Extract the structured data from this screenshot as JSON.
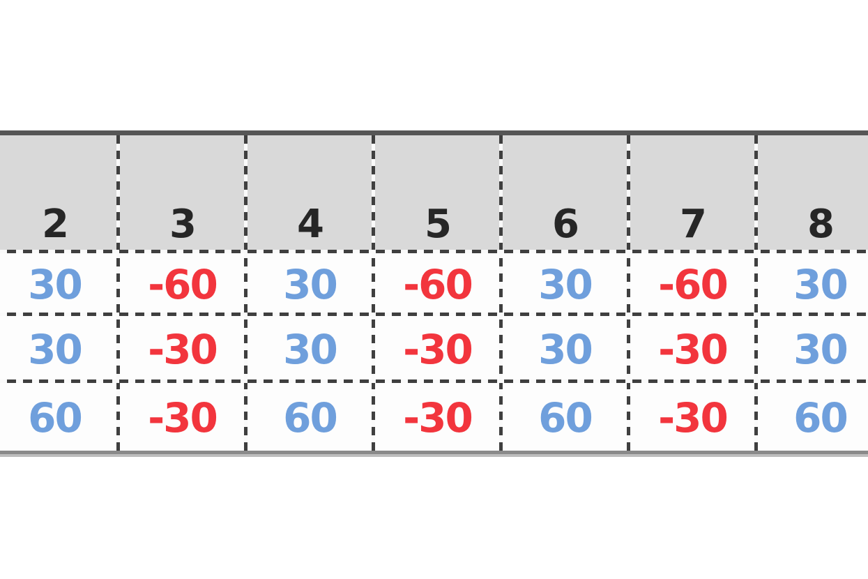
{
  "table": {
    "header_labels": [
      "2",
      "3",
      "4",
      "5",
      "6",
      "7",
      "8"
    ],
    "rows": [
      [
        "30",
        "-60",
        "30",
        "-60",
        "30",
        "-60",
        "30"
      ],
      [
        "30",
        "-30",
        "30",
        "-30",
        "30",
        "-30",
        "30"
      ],
      [
        "60",
        "-30",
        "60",
        "-30",
        "60",
        "-30",
        "60"
      ]
    ]
  },
  "colors": {
    "positive-value": "#6f9fdc",
    "negative-value": "#f2353d",
    "header-bg": "#d9d9d9",
    "header-text": "#262626",
    "gridline": "#3f3f3f",
    "top-border": "#565656",
    "bottom-border": "#8a8a8a",
    "bottom-border-light": "#bdbdbd",
    "cell-bg": "#fdfdfd"
  }
}
